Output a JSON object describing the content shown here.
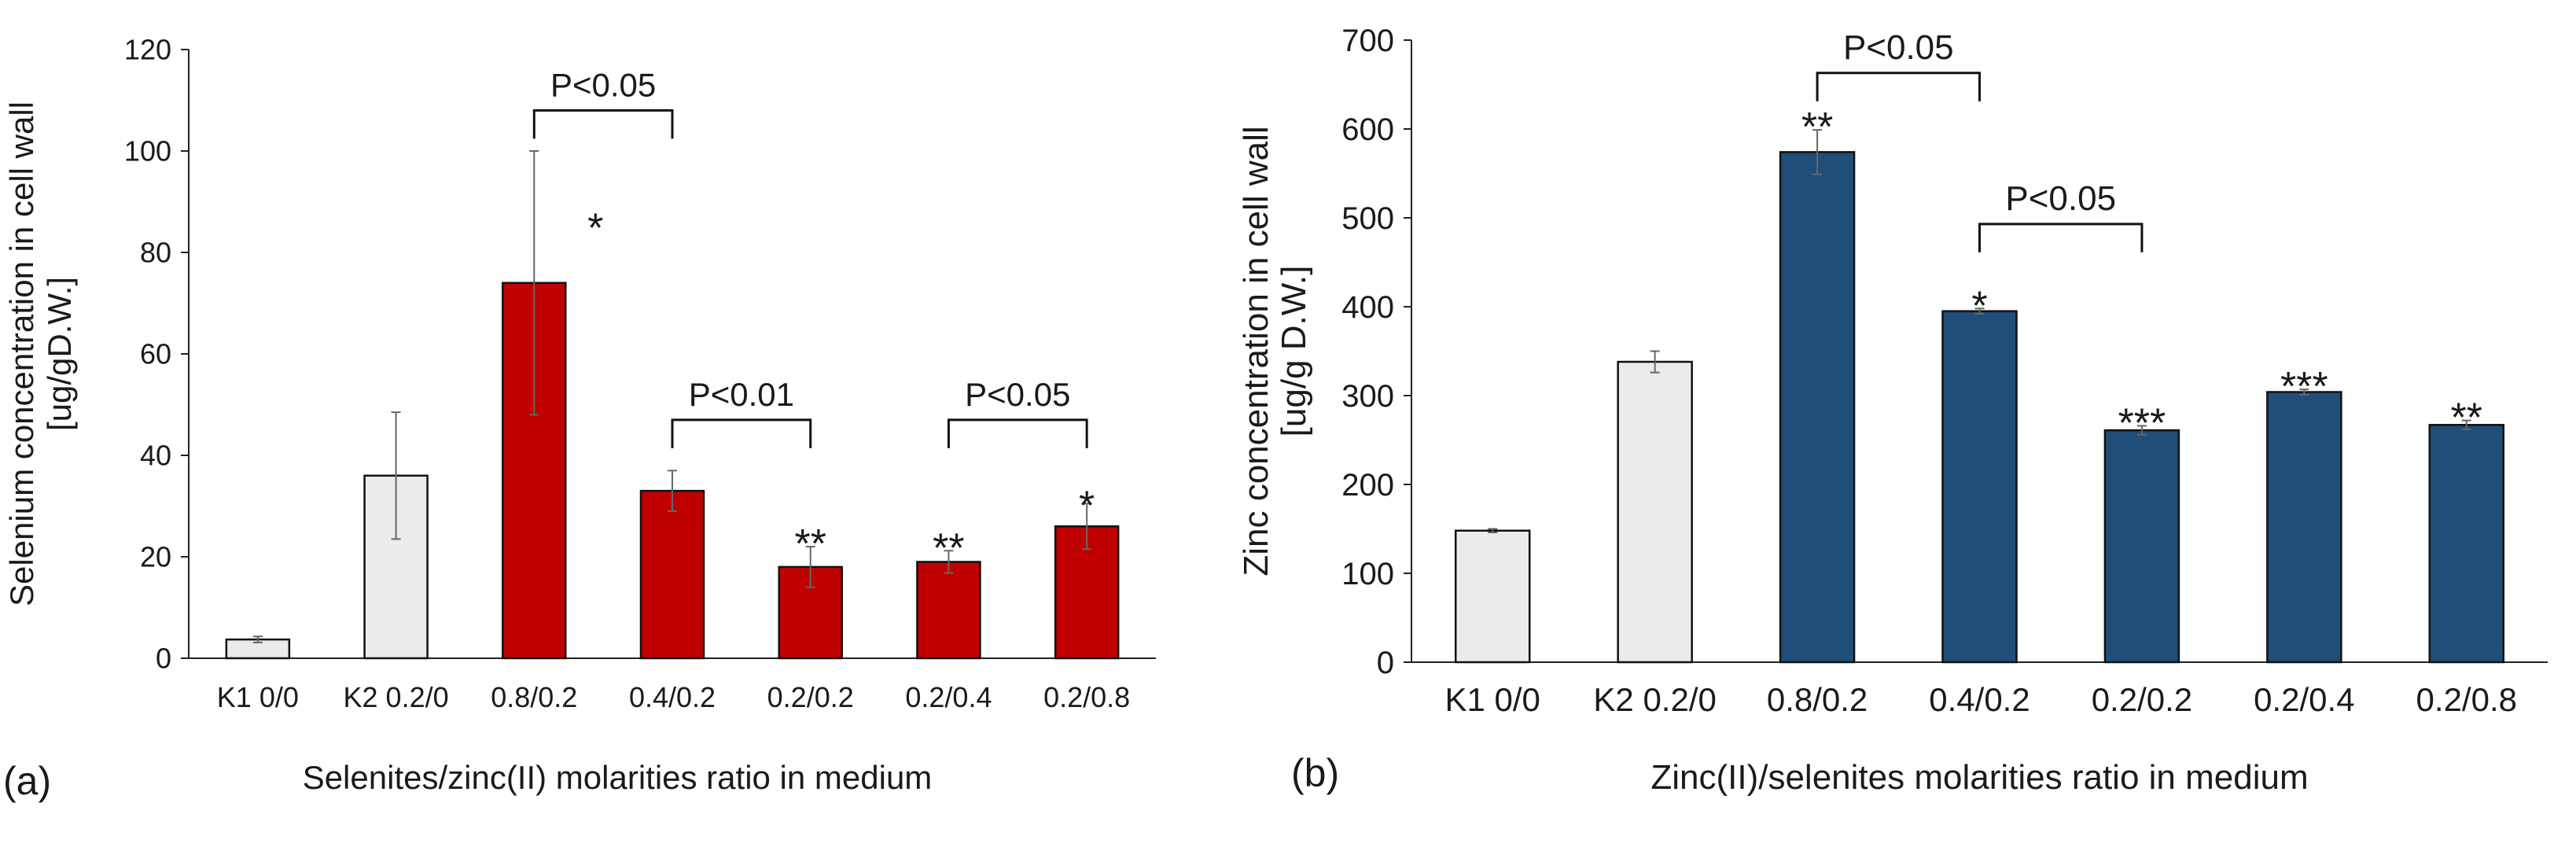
{
  "colors": {
    "control_fill": "#ebebeb",
    "panel_a_fill": "#c00000",
    "panel_b_fill": "#1f4e79",
    "bar_stroke": "#111111",
    "axis": "#222222",
    "text": "#1a1a1a"
  },
  "chart_data": [
    {
      "type": "bar",
      "panel_label": "(a)",
      "xlabel": "Selenites/zinc(II) molarities ratio in medium",
      "ylabel_line1": "Selenium concentration in cell wall",
      "ylabel_line2": "[ug/gD.W.]",
      "ylim": [
        0,
        120
      ],
      "yticks": [
        0,
        20,
        40,
        60,
        80,
        100,
        120
      ],
      "grid": false,
      "categories": [
        "K1 0/0",
        "K2 0.2/0",
        "0.8/0.2",
        "0.4/0.2",
        "0.2/0.2",
        "0.2/0.4",
        "0.2/0.8"
      ],
      "values": [
        3.7,
        36,
        74,
        33,
        18,
        19,
        26
      ],
      "errors": [
        0.6,
        12.5,
        26,
        4,
        4,
        2.2,
        4.5
      ],
      "bar_groups": [
        "control",
        "control",
        "treatment",
        "treatment",
        "treatment",
        "treatment",
        "treatment"
      ],
      "significance": [
        "",
        "",
        "*",
        "",
        "**",
        "**",
        "*"
      ],
      "brackets": [
        {
          "from": 2,
          "to": 3,
          "label": "P<0.05",
          "y": 108
        },
        {
          "from": 3,
          "to": 4,
          "label": "P<0.01",
          "y": 47
        },
        {
          "from": 5,
          "to": 6,
          "label": "P<0.05",
          "y": 47
        }
      ]
    },
    {
      "type": "bar",
      "panel_label": "(b)",
      "xlabel": "Zinc(II)/selenites molarities ratio in  medium",
      "ylabel_line1": "Zinc concentration in cell wall",
      "ylabel_line2": "[ug/g D.W.]",
      "ylim": [
        0,
        700
      ],
      "yticks": [
        0,
        100,
        200,
        300,
        400,
        500,
        600,
        700
      ],
      "grid": false,
      "categories": [
        "K1 0/0",
        "K2 0.2/0",
        "0.8/0.2",
        "0.4/0.2",
        "0.2/0.2",
        "0.2/0.4",
        "0.2/0.8"
      ],
      "values": [
        148,
        338,
        574,
        395,
        261,
        304,
        267
      ],
      "errors": [
        2,
        12,
        25,
        3,
        5,
        3,
        5
      ],
      "bar_groups": [
        "control",
        "control",
        "treatment",
        "treatment",
        "treatment",
        "treatment",
        "treatment"
      ],
      "significance": [
        "",
        "",
        "**",
        "*",
        "***",
        "***",
        "**"
      ],
      "brackets": [
        {
          "from": 2,
          "to": 3,
          "label": "P<0.05",
          "y": 663
        },
        {
          "from": 3,
          "to": 4,
          "label": "P<0.05",
          "y": 493
        }
      ]
    }
  ]
}
